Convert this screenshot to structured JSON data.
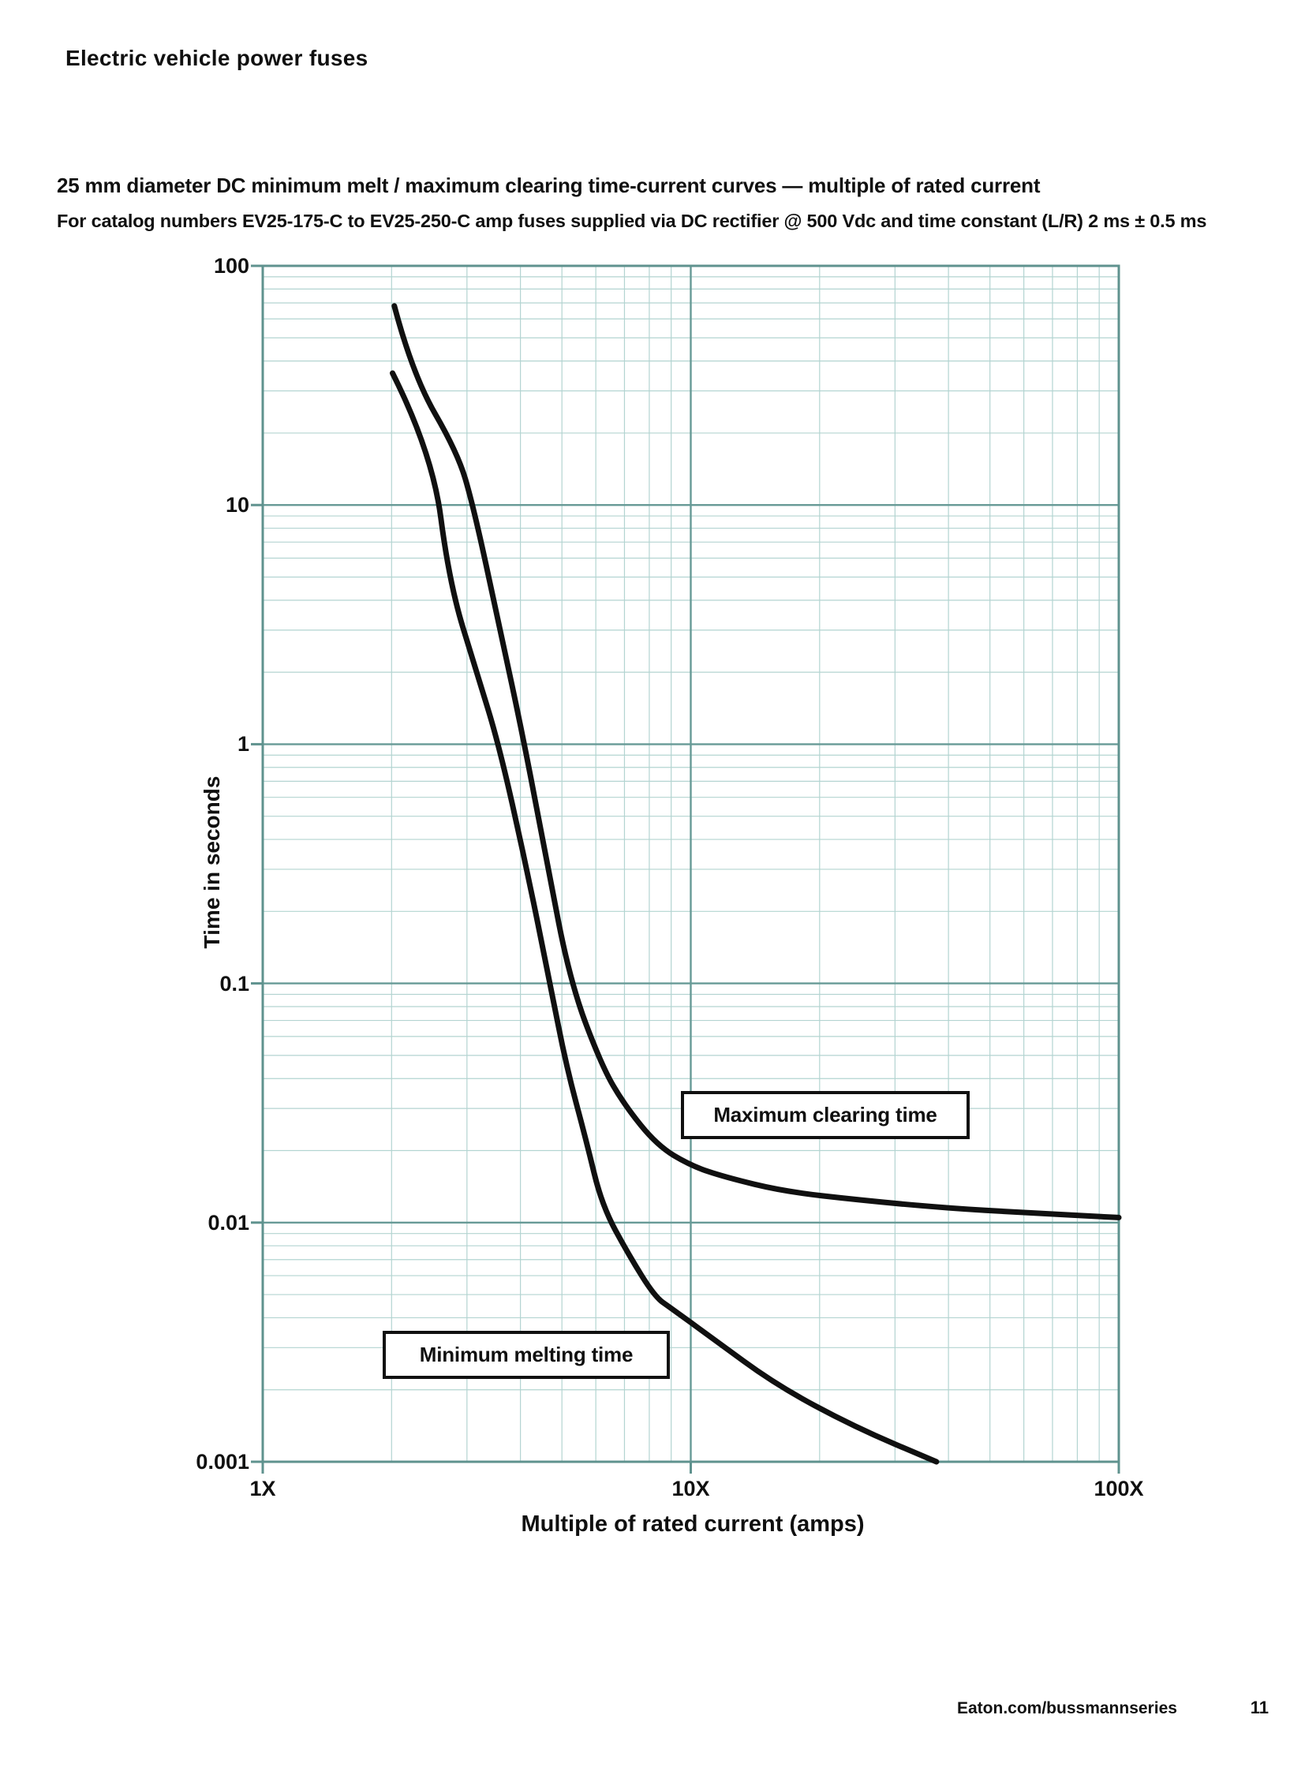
{
  "page": {
    "header": "Electric vehicle power fuses",
    "footer_link": "Eaton.com/bussmannseries",
    "page_number": "11"
  },
  "chart_data": {
    "type": "line",
    "title": "25 mm diameter DC minimum melt / maximum clearing time-current curves — multiple of rated current",
    "subtitle": "For catalog numbers EV25-175-C to EV25-250-C amp fuses supplied via DC rectifier @ 500 Vdc and time constant (L/R) 2 ms ± 0.5 ms",
    "xlabel": "Multiple of rated current (amps)",
    "ylabel": "Time in seconds",
    "x_scale": "log",
    "y_scale": "log",
    "xlim": [
      1,
      100
    ],
    "ylim": [
      0.001,
      100
    ],
    "grid": "log-log graph paper: dark decade lines, light minor lines at 2-9 of each decade",
    "legend_position": "inline white label boxes with black border",
    "x_ticks": [
      {
        "v": 1,
        "label": "1X"
      },
      {
        "v": 10,
        "label": "10X"
      },
      {
        "v": 100,
        "label": "100X"
      }
    ],
    "y_ticks": [
      {
        "v": 100,
        "label": "100"
      },
      {
        "v": 10,
        "label": "10"
      },
      {
        "v": 1,
        "label": "1"
      },
      {
        "v": 0.1,
        "label": "0.1"
      },
      {
        "v": 0.01,
        "label": "0.01"
      },
      {
        "v": 0.001,
        "label": "0.001"
      }
    ],
    "colors": {
      "curve": "#101010",
      "grid_major": "#679a96",
      "grid_minor": "#b3d4d1",
      "label_box_fill": "#ffffff",
      "label_box_border": "#101010"
    },
    "series": [
      {
        "name": "Maximum clearing time",
        "points": [
          [
            2.03,
            68
          ],
          [
            2.24,
            35
          ],
          [
            2.85,
            16.6
          ],
          [
            3.1,
            10
          ],
          [
            3.56,
            3.2
          ],
          [
            4.09,
            1
          ],
          [
            4.61,
            0.32
          ],
          [
            5.24,
            0.1
          ],
          [
            6.2,
            0.045
          ],
          [
            7.0,
            0.031
          ],
          [
            8.35,
            0.021
          ],
          [
            10,
            0.0173
          ],
          [
            12,
            0.0155
          ],
          [
            16.5,
            0.0135
          ],
          [
            25,
            0.0124
          ],
          [
            39.6,
            0.0115
          ],
          [
            60,
            0.011
          ],
          [
            100,
            0.0105
          ]
        ]
      },
      {
        "name": "Minimum melting time",
        "points": [
          [
            2.01,
            35.6
          ],
          [
            2.49,
            16.6
          ],
          [
            2.73,
            4.7
          ],
          [
            3.16,
            2.0
          ],
          [
            3.56,
            1
          ],
          [
            4.11,
            0.32
          ],
          [
            4.69,
            0.1
          ],
          [
            5.12,
            0.045
          ],
          [
            5.7,
            0.022
          ],
          [
            6.2,
            0.0118
          ],
          [
            7.17,
            0.0073
          ],
          [
            8.24,
            0.0049
          ],
          [
            8.97,
            0.0044
          ],
          [
            11.2,
            0.0033
          ],
          [
            15.8,
            0.0021
          ],
          [
            24.1,
            0.0014
          ],
          [
            37.5,
            0.001
          ]
        ]
      }
    ]
  }
}
